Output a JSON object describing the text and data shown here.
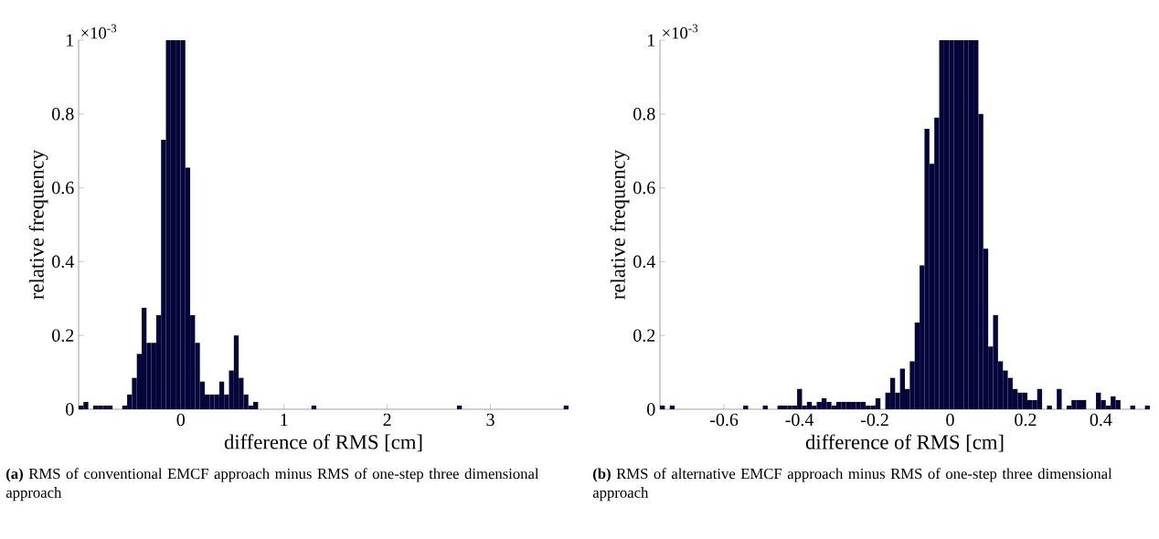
{
  "chart_data": [
    {
      "type": "histogram",
      "color": "#05053a",
      "xlabel": "difference of RMS [cm]",
      "ylabel": "relative frequency",
      "annotations": [
        "×10$^{-3}$",
        "**(a)** RMS of conventional EMCF approach minus RMS of one-step three dimensional approach"
      ],
      "bins": [
        -0.99,
        -0.943,
        -0.896,
        -0.849,
        -0.802,
        -0.755,
        -0.708,
        -0.661,
        -0.614,
        -0.567,
        -0.52,
        -0.473,
        -0.426,
        -0.379,
        -0.332,
        -0.285,
        -0.238,
        -0.191,
        -0.144,
        -0.097,
        -0.05,
        -0.003,
        0.044,
        0.091,
        0.138,
        0.185,
        0.232,
        0.279,
        0.326,
        0.373,
        0.42,
        0.467,
        0.514,
        0.561,
        0.608,
        0.655,
        0.702,
        0.749,
        0.796,
        0.843,
        0.89,
        0.937,
        0.984,
        1.031,
        1.078,
        1.125,
        1.172,
        1.219,
        1.266,
        1.313,
        1.36,
        1.407,
        1.454,
        1.501,
        1.548,
        1.595,
        1.642,
        1.689,
        1.736,
        1.783,
        1.83,
        1.877,
        1.924,
        1.971,
        2.018,
        2.065,
        2.112,
        2.159,
        2.206,
        2.253,
        2.3,
        2.347,
        2.394,
        2.441,
        2.488,
        2.535,
        2.582,
        2.629,
        2.676,
        2.723,
        2.77,
        2.817,
        2.864,
        2.911,
        2.958,
        3.005,
        3.052,
        3.099,
        3.146,
        3.193,
        3.24,
        3.287,
        3.334,
        3.381,
        3.428,
        3.475,
        3.522,
        3.569,
        3.616,
        3.663,
        3.71,
        3.757
      ],
      "values": [
        0.01,
        0.02,
        0,
        0.01,
        0.01,
        0.01,
        0.01,
        0,
        0,
        0.01,
        0.04,
        0.085,
        0.15,
        0.275,
        0.18,
        0.18,
        0.255,
        0.73,
        1,
        1,
        1,
        1,
        0.655,
        0.255,
        0.18,
        0.075,
        0.04,
        0.04,
        0.04,
        0.075,
        0.04,
        0.105,
        0.2,
        0.085,
        0.04,
        0.01,
        0.02,
        0,
        0,
        0,
        0,
        0,
        0,
        0,
        0,
        0,
        0,
        0,
        0.01,
        0,
        0,
        0,
        0,
        0,
        0,
        0,
        0,
        0,
        0,
        0,
        0,
        0,
        0,
        0,
        0,
        0,
        0,
        0,
        0,
        0,
        0,
        0,
        0,
        0,
        0,
        0,
        0,
        0,
        0.01,
        0,
        0,
        0,
        0,
        0,
        0,
        0,
        0,
        0,
        0,
        0,
        0,
        0,
        0,
        0,
        0,
        0,
        0,
        0,
        0,
        0,
        0.01
      ],
      "xlim": [
        -0.99,
        3.757
      ],
      "ylim": [
        0,
        1
      ],
      "xticks": [
        0,
        1,
        2,
        3
      ],
      "yticks": [
        0,
        0.2,
        0.4,
        0.6,
        0.8,
        1
      ],
      "grid": false
    },
    {
      "type": "histogram",
      "color": "#05053a",
      "xlabel": "difference of RMS [cm]",
      "ylabel": "relative frequency",
      "annotations": [
        "×10$^{-3}$",
        "**(b)** RMS of alternative EMCF approach minus RMS of one-step three dimensional approach"
      ],
      "bins": [
        -0.77,
        -0.757,
        -0.744,
        -0.731,
        -0.718,
        -0.705,
        -0.692,
        -0.679,
        -0.666,
        -0.653,
        -0.64,
        -0.627,
        -0.614,
        -0.601,
        -0.588,
        -0.575,
        -0.562,
        -0.549,
        -0.536,
        -0.523,
        -0.51,
        -0.497,
        -0.484,
        -0.471,
        -0.458,
        -0.445,
        -0.432,
        -0.419,
        -0.406,
        -0.393,
        -0.38,
        -0.367,
        -0.354,
        -0.341,
        -0.328,
        -0.315,
        -0.302,
        -0.289,
        -0.276,
        -0.263,
        -0.25,
        -0.237,
        -0.224,
        -0.211,
        -0.198,
        -0.185,
        -0.172,
        -0.159,
        -0.146,
        -0.133,
        -0.12,
        -0.107,
        -0.094,
        -0.081,
        -0.068,
        -0.055,
        -0.042,
        -0.029,
        -0.016,
        -0.003,
        0.01,
        0.023,
        0.036,
        0.049,
        0.062,
        0.075,
        0.088,
        0.101,
        0.114,
        0.127,
        0.14,
        0.153,
        0.166,
        0.179,
        0.192,
        0.205,
        0.218,
        0.231,
        0.244,
        0.257,
        0.27,
        0.283,
        0.296,
        0.309,
        0.322,
        0.335,
        0.348,
        0.361,
        0.374,
        0.387,
        0.4,
        0.413,
        0.426,
        0.439,
        0.452,
        0.465,
        0.478,
        0.491,
        0.504,
        0.517,
        0.53
      ],
      "values": [
        0.01,
        0,
        0.01,
        0,
        0,
        0,
        0,
        0,
        0,
        0,
        0,
        0,
        0,
        0,
        0,
        0,
        0,
        0.01,
        0,
        0,
        0,
        0.01,
        0,
        0,
        0.01,
        0.01,
        0.01,
        0.01,
        0.055,
        0.01,
        0.02,
        0.01,
        0.02,
        0.03,
        0.02,
        0.01,
        0.02,
        0.02,
        0.02,
        0.02,
        0.02,
        0.02,
        0.01,
        0.01,
        0.03,
        0,
        0.045,
        0.085,
        0.045,
        0.11,
        0.055,
        0.13,
        0.235,
        0.39,
        0.76,
        0.665,
        0.79,
        1,
        1,
        1,
        1,
        1,
        1,
        1,
        1,
        0.8,
        0.435,
        0.17,
        0.255,
        0.13,
        0.105,
        0.085,
        0.055,
        0.045,
        0.045,
        0.025,
        0.025,
        0.055,
        0,
        0.01,
        0,
        0.055,
        0,
        0.01,
        0.025,
        0.025,
        0.025,
        0,
        0,
        0.045,
        0.025,
        0.01,
        0.035,
        0.025,
        0,
        0,
        0.01,
        0,
        0,
        0.01
      ],
      "xlim": [
        -0.77,
        0.53
      ],
      "ylim": [
        0,
        1
      ],
      "xticks": [
        -0.6,
        -0.4,
        -0.2,
        0,
        0.2,
        0.4
      ],
      "yticks": [
        0,
        0.2,
        0.4,
        0.6,
        0.8,
        1
      ],
      "grid": false
    }
  ]
}
